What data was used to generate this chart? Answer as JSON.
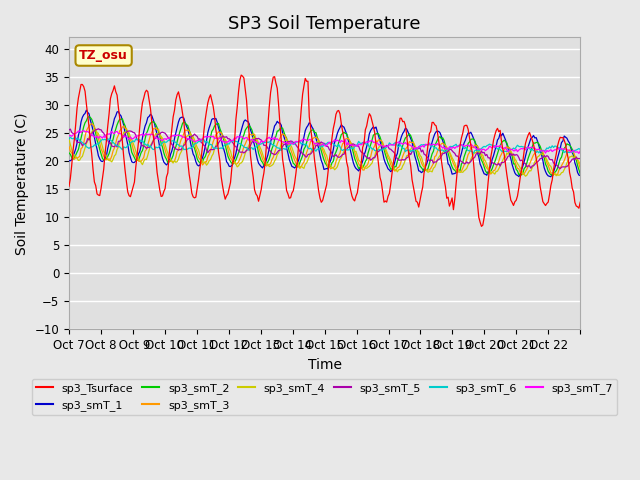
{
  "title": "SP3 Soil Temperature",
  "ylabel": "Soil Temperature (C)",
  "xlabel": "Time",
  "annotation": "TZ_osu",
  "ylim": [
    -10,
    42
  ],
  "yticks": [
    -10,
    -5,
    0,
    5,
    10,
    15,
    20,
    25,
    30,
    35,
    40
  ],
  "xtick_labels": [
    "Oct 7",
    "Oct 8",
    " Oct 9",
    "Oct 10",
    "Oct 11",
    "Oct 12",
    "Oct 13",
    "Oct 14",
    "Oct 15",
    "Oct 16",
    "Oct 17",
    "Oct 18",
    "Oct 19",
    "Oct 20",
    "Oct 21",
    "Oct 22",
    ""
  ],
  "n_days": 16,
  "points_per_day": 24,
  "series_colors": {
    "sp3_Tsurface": "#ff0000",
    "sp3_smT_1": "#0000cc",
    "sp3_smT_2": "#00cc00",
    "sp3_smT_3": "#ff9900",
    "sp3_smT_4": "#cccc00",
    "sp3_smT_5": "#aa00aa",
    "sp3_smT_6": "#00cccc",
    "sp3_smT_7": "#ff00ff"
  },
  "background_color": "#e8e8e8",
  "plot_bg_color": "#e0e0e0",
  "grid_color": "#ffffff",
  "title_fontsize": 13,
  "axis_fontsize": 10,
  "tick_fontsize": 8.5
}
